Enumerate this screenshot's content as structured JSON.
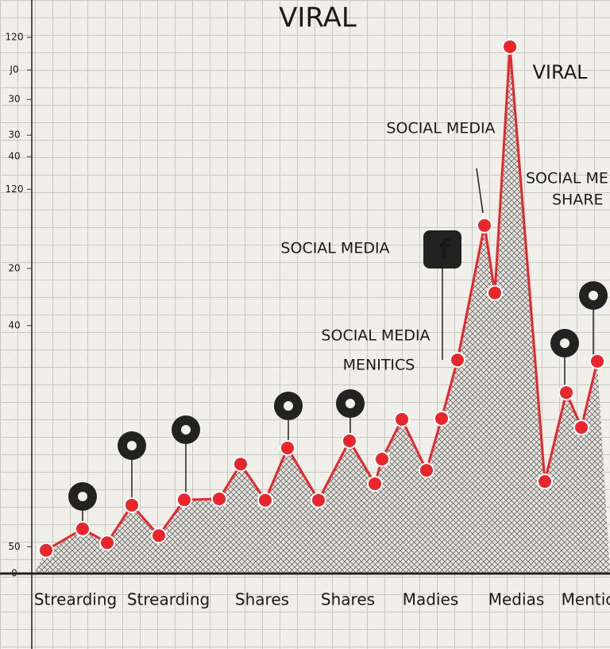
{
  "chart_data": {
    "type": "line",
    "title": "VIRAL",
    "x": [
      0.18,
      0.64,
      0.95,
      1.26,
      1.6,
      1.92,
      2.36,
      2.63,
      2.94,
      3.22,
      3.61,
      4.0,
      4.32,
      4.41,
      4.66,
      4.97,
      5.16,
      5.36,
      5.7,
      5.83,
      6.02,
      6.46,
      6.73,
      6.92,
      7.12
    ],
    "values": [
      5.2,
      10.0,
      6.9,
      15.3,
      8.5,
      16.5,
      16.7,
      24.5,
      16.4,
      28.1,
      16.4,
      29.7,
      20.1,
      25.6,
      34.5,
      23.1,
      34.7,
      47.8,
      77.9,
      62.8,
      117.9,
      20.6,
      40.5,
      32.7,
      47.5
    ],
    "color": "#e8262c",
    "xlim": [
      0,
      7.28
    ],
    "xticks": [
      {
        "value": 0.55,
        "label": "Strearding"
      },
      {
        "value": 1.72,
        "label": "Strearding"
      },
      {
        "value": 2.9,
        "label": "Shares"
      },
      {
        "value": 3.98,
        "label": "Shares"
      },
      {
        "value": 5.02,
        "label": "Madies"
      },
      {
        "value": 6.1,
        "label": "Medias"
      },
      {
        "value": 7.0,
        "label": "Mentic"
      }
    ],
    "ylim": [
      0,
      120
    ],
    "yticks": [
      0,
      {
        "value": 6,
        "label": "50"
      },
      {
        "value": 55.5,
        "label": "40"
      },
      {
        "value": 68.3,
        "label": "20"
      },
      {
        "value": 86,
        "label": "120"
      },
      {
        "value": 93.3,
        "label": "40"
      },
      {
        "value": 98.1,
        "label": "30"
      },
      {
        "value": 106.1,
        "label": "30"
      },
      {
        "value": 112.7,
        "label": "J0"
      },
      120
    ],
    "annotations": [
      "VIRAL",
      "SOCIAL MEDIA",
      "SOCIAL ME",
      "SHARE",
      "SOCIAL MEDIA",
      "SOCIAL MEDIA",
      "MENITICS"
    ]
  }
}
